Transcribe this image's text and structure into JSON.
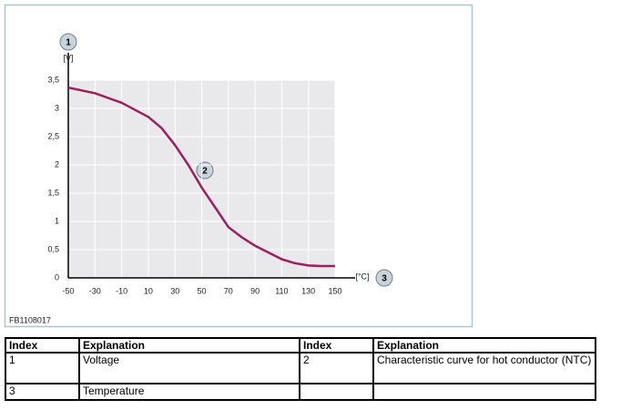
{
  "chart_data": {
    "type": "line",
    "x_label": "[°C]",
    "y_label": "[V]",
    "callouts": {
      "y_axis": "1",
      "curve": "2",
      "x_axis": "3"
    },
    "figure_id": "FB1108017",
    "x": [
      -50,
      -30,
      -10,
      10,
      20,
      30,
      40,
      50,
      60,
      70,
      80,
      90,
      100,
      110,
      120,
      130,
      140,
      150
    ],
    "series": [
      {
        "name": "Characteristic curve for hot conductor (NTC)",
        "color": "#9c1f5e",
        "values": [
          3.37,
          3.27,
          3.1,
          2.85,
          2.65,
          2.35,
          2.0,
          1.6,
          1.25,
          0.9,
          0.72,
          0.57,
          0.45,
          0.33,
          0.26,
          0.22,
          0.21,
          0.21
        ]
      }
    ],
    "xlim": [
      -50,
      150
    ],
    "xticks": [
      -50,
      -30,
      -10,
      10,
      30,
      50,
      70,
      90,
      110,
      130,
      150
    ],
    "ylim": [
      0,
      3.5
    ],
    "yticks": [
      0,
      {
        "value": 0.5,
        "label": "0,5"
      },
      1,
      {
        "value": 1.5,
        "label": "1,5"
      },
      2,
      {
        "value": 2.5,
        "label": "2,5"
      },
      3,
      {
        "value": 3.5,
        "label": "3,5"
      }
    ],
    "grid": true
  },
  "table": {
    "header": [
      "Index",
      "Explanation",
      "Index",
      "Explanation"
    ],
    "rows": [
      [
        "1",
        "Voltage",
        "2",
        "Characteristic curve for hot conductor (NTC)"
      ],
      [
        "3",
        "Temperature"
      ]
    ]
  }
}
